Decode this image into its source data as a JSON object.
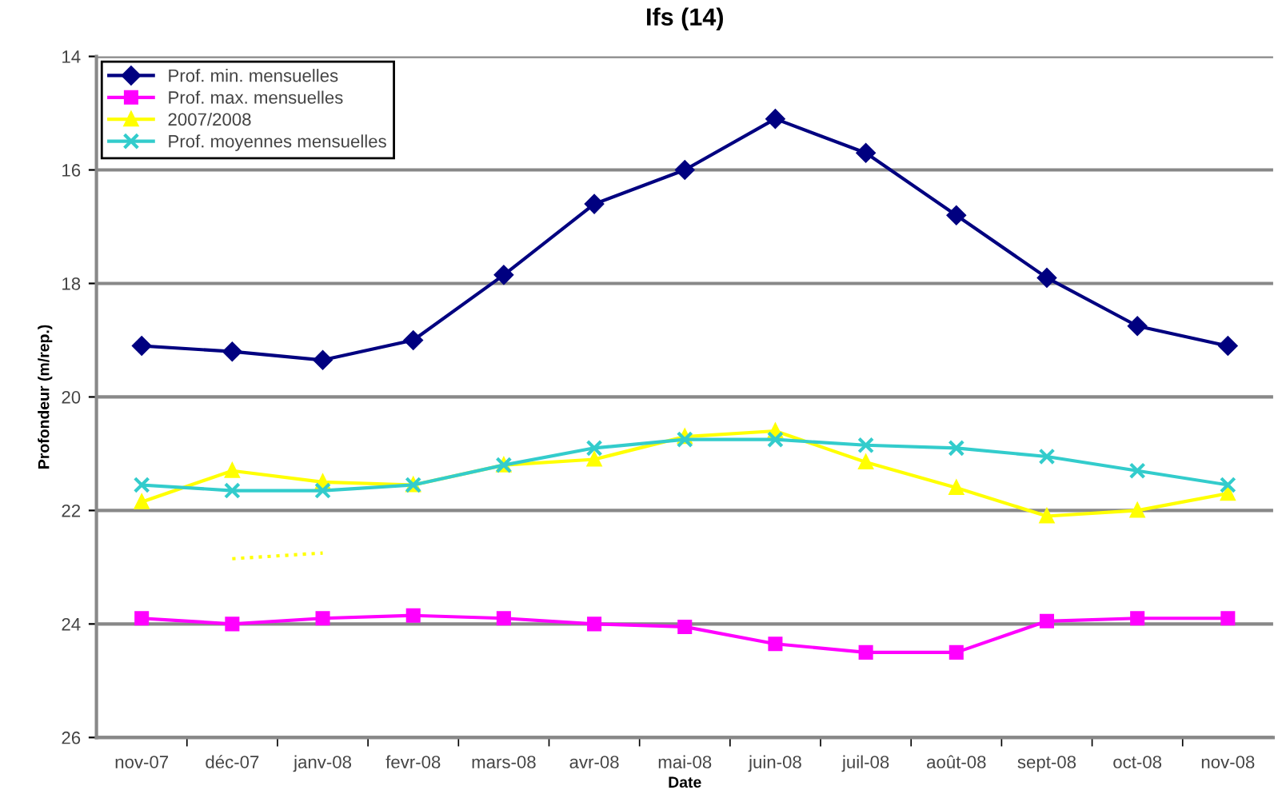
{
  "chart_data": {
    "type": "line",
    "title": "Ifs (14)",
    "xlabel": "Date",
    "ylabel": "Profondeur (m/rep.)",
    "categories": [
      "nov-07",
      "déc-07",
      "janv-08",
      "fevr-08",
      "mars-08",
      "avr-08",
      "mai-08",
      "juin-08",
      "juil-08",
      "août-08",
      "sept-08",
      "oct-08",
      "nov-08"
    ],
    "series": [
      {
        "name": "Prof. min. mensuelles",
        "color": "#000080",
        "marker": "diamond",
        "values": [
          19.1,
          19.2,
          19.35,
          19.0,
          17.85,
          16.6,
          16.0,
          15.1,
          15.7,
          16.8,
          17.9,
          18.75,
          19.1
        ]
      },
      {
        "name": "Prof. max. mensuelles",
        "color": "#ff00ff",
        "marker": "square",
        "values": [
          23.9,
          24.0,
          23.9,
          23.85,
          23.9,
          24.0,
          24.05,
          24.35,
          24.5,
          24.5,
          23.95,
          23.9,
          23.9
        ]
      },
      {
        "name": "2007/2008",
        "color": "#ffff00",
        "marker": "triangle",
        "values": [
          21.85,
          21.3,
          21.5,
          21.55,
          21.2,
          21.1,
          20.7,
          20.6,
          21.15,
          21.6,
          22.1,
          22.0,
          21.7
        ]
      },
      {
        "name": "Prof. moyennes mensuelles",
        "color": "#33cccc",
        "marker": "cross",
        "values": [
          21.55,
          21.65,
          21.65,
          21.55,
          21.2,
          20.9,
          20.75,
          20.75,
          20.85,
          20.9,
          21.05,
          21.3,
          21.55
        ]
      },
      {
        "type": "line",
        "color": "#ffff00",
        "marker": "none",
        "line_style": "dotted",
        "values": [
          null,
          22.85,
          22.75,
          null,
          null,
          null,
          null,
          null,
          null,
          null,
          null,
          null,
          null
        ]
      }
    ],
    "ylim": [
      26,
      14
    ],
    "yticks": [
      14,
      16,
      18,
      20,
      22,
      24,
      26
    ],
    "grid": "y",
    "legend": "top left"
  }
}
